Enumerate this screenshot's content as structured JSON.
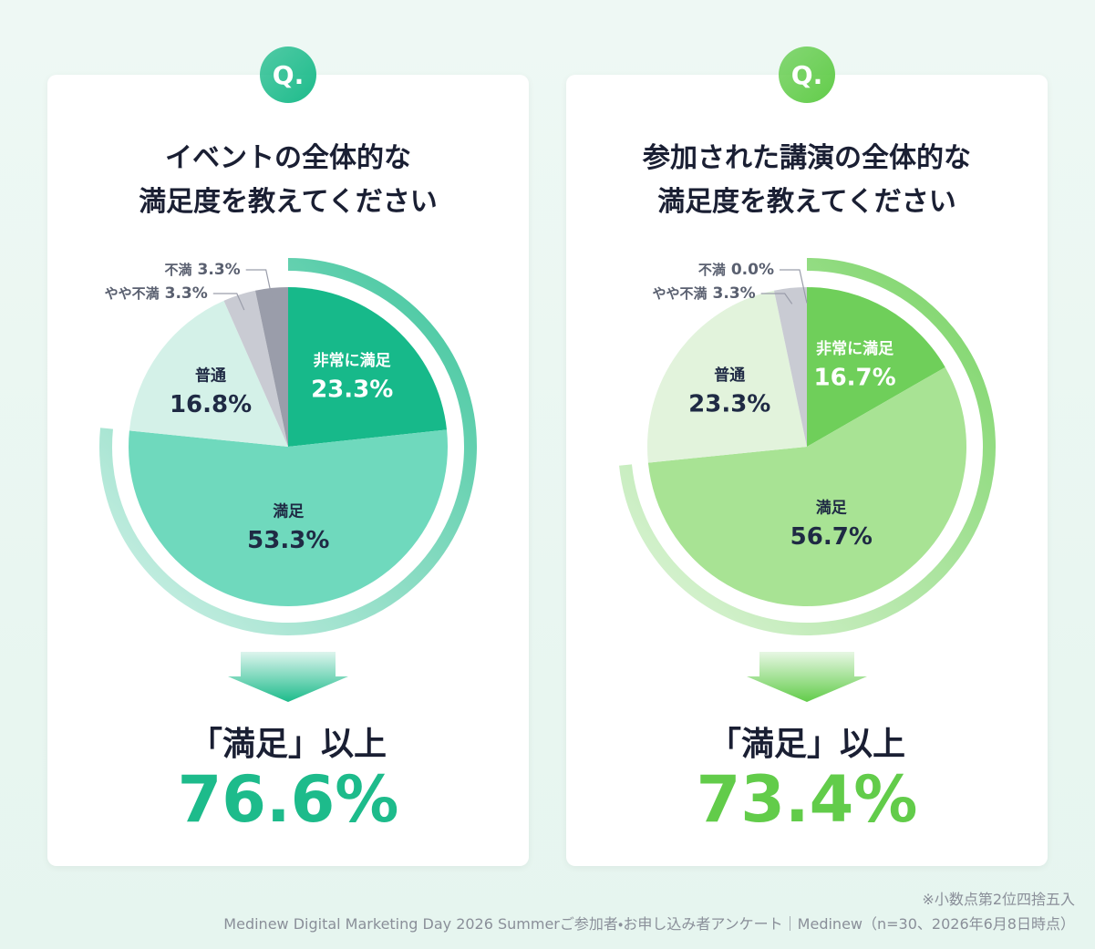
{
  "chart_data": [
    {
      "type": "pie",
      "badge": "Q.",
      "title": "イベントの全体的な\n満足度を教えてください",
      "categories": [
        "非常に満足",
        "満足",
        "普通",
        "やや不満",
        "不満"
      ],
      "values": [
        23.3,
        53.3,
        16.8,
        3.3,
        3.3
      ],
      "value_labels": [
        "23.3%",
        "53.3%",
        "16.8%",
        "3.3%",
        "3.3%"
      ],
      "colors": [
        "#17b98a",
        "#6fd9bd",
        "#d4f1e8",
        "#c9cbd3",
        "#9a9daa"
      ],
      "accent": "#1dbb8b",
      "total": 76.6,
      "total_caption": "「満足」以上",
      "total_label": "76.6%"
    },
    {
      "type": "pie",
      "badge": "Q.",
      "title": "参加された講演の全体的な\n満足度を教えてください",
      "categories": [
        "非常に満足",
        "満足",
        "普通",
        "やや不満",
        "不満"
      ],
      "values": [
        16.7,
        56.7,
        23.3,
        3.3,
        0.0
      ],
      "value_labels": [
        "16.7%",
        "56.7%",
        "23.3%",
        "3.3%",
        "0.0%"
      ],
      "colors": [
        "#6fcf5a",
        "#a8e394",
        "#e2f3dc",
        "#c9cbd3",
        "#9a9daa"
      ],
      "accent": "#62cc4a",
      "total": 73.4,
      "total_caption": "「満足」以上",
      "total_label": "73.4%"
    }
  ],
  "footer": {
    "note": "※小数点第2位四捨五入",
    "source": "Medinew Digital Marketing Day 2026 Summerご参加者・お申し込み者アンケート｜Medinew（n=30、2026年6月8日時点）"
  }
}
